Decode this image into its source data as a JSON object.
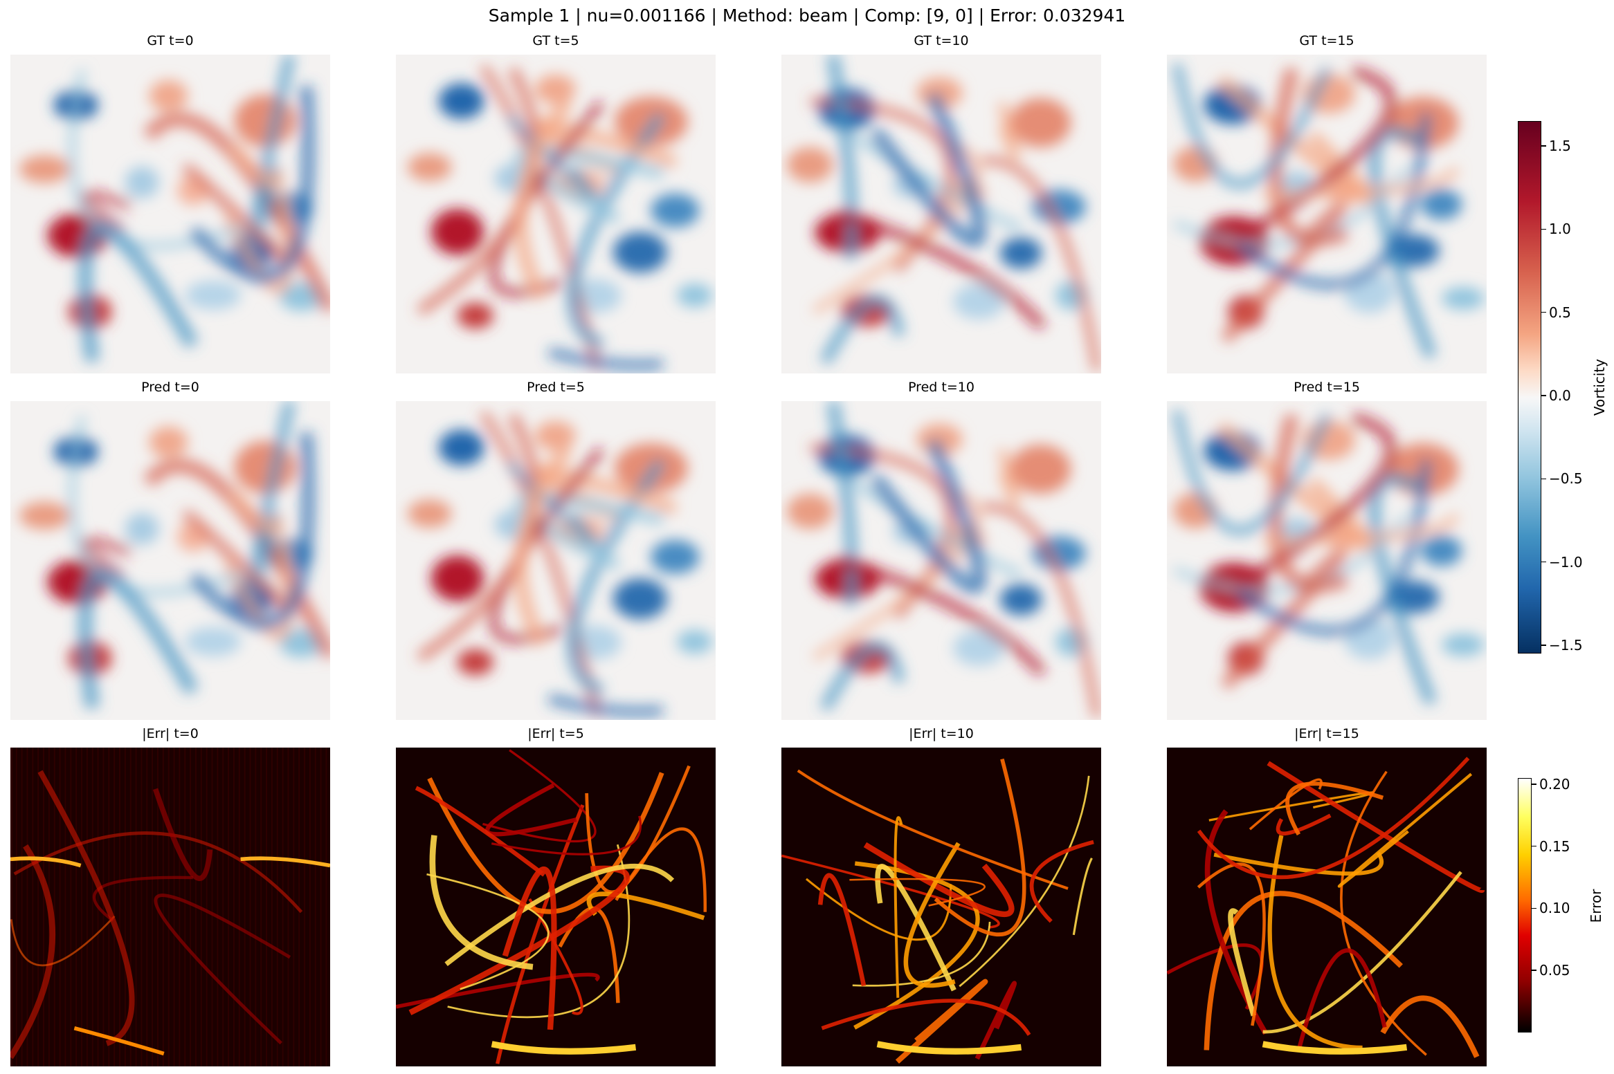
{
  "title": "Sample 1 | nu=0.001166 | Method: beam | Comp: [9, 0] | Error: 0.032941",
  "rows": [
    {
      "kind": "vorticity",
      "titles": [
        "GT t=0",
        "GT t=5",
        "GT t=10",
        "GT t=15"
      ]
    },
    {
      "kind": "vorticity",
      "titles": [
        "Pred t=0",
        "Pred t=5",
        "Pred t=10",
        "Pred t=15"
      ]
    },
    {
      "kind": "error",
      "titles": [
        "|Err| t=0",
        "|Err| t=5",
        "|Err| t=10",
        "|Err| t=15"
      ]
    }
  ],
  "chart_data": [
    {
      "type": "heatmap",
      "colormap": "RdBu_r",
      "colorbar_label": "Vorticity",
      "range": [
        -1.55,
        1.65
      ],
      "ticks": [
        {
          "value": 1.5,
          "label": "1.5"
        },
        {
          "value": 1.0,
          "label": "1.0"
        },
        {
          "value": 0.5,
          "label": "0.5"
        },
        {
          "value": 0.0,
          "label": "0.0"
        },
        {
          "value": -0.5,
          "label": "−0.5"
        },
        {
          "value": -1.0,
          "label": "−1.0"
        },
        {
          "value": -1.5,
          "label": "−1.5"
        }
      ]
    },
    {
      "type": "heatmap",
      "colormap": "hot",
      "colorbar_label": "Error",
      "range": [
        0.0,
        0.205
      ],
      "ticks": [
        {
          "value": 0.2,
          "label": "0.20"
        },
        {
          "value": 0.15,
          "label": "0.15"
        },
        {
          "value": 0.1,
          "label": "0.10"
        },
        {
          "value": 0.05,
          "label": "0.05"
        }
      ]
    }
  ],
  "colors": {
    "vort_pos": "#67001f",
    "vort_mid": "#f7f7f7",
    "vort_neg": "#053061",
    "err_low": "#000000",
    "err_high": "#ffffff"
  }
}
